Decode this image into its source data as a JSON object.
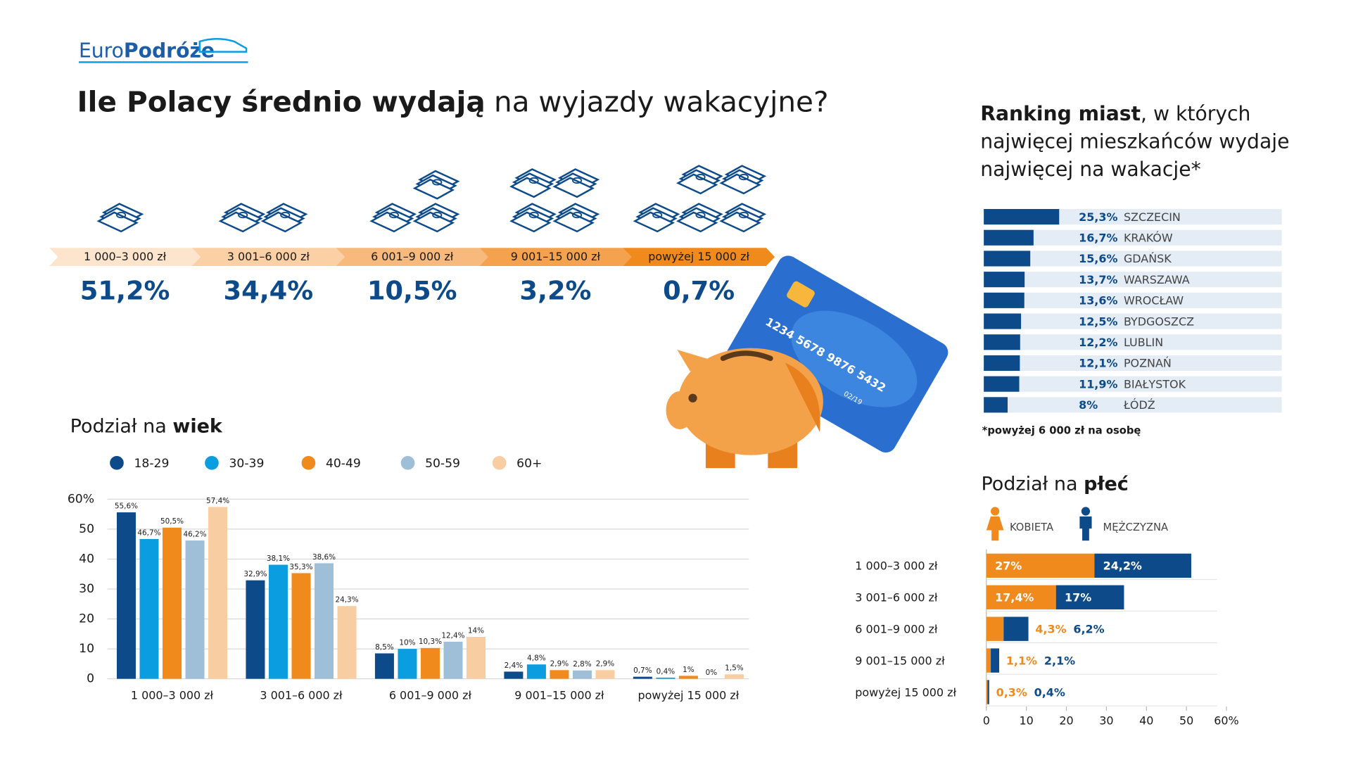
{
  "logo": {
    "light": "Euro",
    "bold": "Podróże"
  },
  "title": {
    "bold": "Ile Polacy średnio wydają",
    "rest": "na wyjazdy wakacyjne?"
  },
  "brackets": [
    {
      "label": "1 000–3 000 zł",
      "share": "51,2%"
    },
    {
      "label": "3 001–6 000 zł",
      "share": "34,4%"
    },
    {
      "label": "6 001–9 000 zł",
      "share": "10,5%"
    },
    {
      "label": "9 001–15 000 zł",
      "share": "3,2%"
    },
    {
      "label": "powyżej 15 000 zł",
      "share": "0,7%"
    }
  ],
  "card": {
    "number": "1234 5678 9876 5432",
    "expiry": "02/19"
  },
  "chart_data": [
    {
      "type": "hbar",
      "title": {
        "bold": "Ranking miast",
        "lines": [
          ", w których",
          "najwięcej mieszkańców wydaje",
          "najwięcej na wakacje*"
        ]
      },
      "categories": [
        "SZCZECIN",
        "KRAKÓW",
        "GDAŃSK",
        "WARSZAWA",
        "WROCŁAW",
        "BYDGOSZCZ",
        "LUBLIN",
        "POZNAŃ",
        "BIAŁYSTOK",
        "ŁÓDŹ"
      ],
      "values": [
        25.3,
        16.7,
        15.6,
        13.7,
        13.6,
        12.5,
        12.2,
        12.1,
        11.9,
        8
      ],
      "value_labels": [
        "25,3%",
        "16,7%",
        "15,6%",
        "13,7%",
        "13,6%",
        "12,5%",
        "12,2%",
        "12,1%",
        "11,9%",
        "8%"
      ],
      "color": "#0d4a8a",
      "xlim": [
        0,
        100
      ],
      "note": "*powyżej 6 000 zł na osobę"
    },
    {
      "type": "bar",
      "title": {
        "light": "Podział na",
        "bold": "wiek"
      },
      "categories": [
        "1 000–3 000 zł",
        "3 001–6 000 zł",
        "6 001–9 000 zł",
        "9 001–15 000 zł",
        "powyżej 15 000 zł"
      ],
      "series": [
        {
          "name": "18-29",
          "color": "#0d4a8a",
          "values": [
            55.6,
            32.9,
            8.5,
            2.4,
            0.7
          ],
          "value_labels": [
            "55,6%",
            "32,9%",
            "8,5%",
            "2,4%",
            "0,7%"
          ]
        },
        {
          "name": "30-39",
          "color": "#0a9ee0",
          "values": [
            46.7,
            38.1,
            10,
            4.8,
            0.4
          ],
          "value_labels": [
            "46,7%",
            "38,1%",
            "10%",
            "4,8%",
            "0,4%"
          ]
        },
        {
          "name": "40-49",
          "color": "#f08a1c",
          "values": [
            50.5,
            35.3,
            10.3,
            2.9,
            1
          ],
          "value_labels": [
            "50,5%",
            "35,3%",
            "10,3%",
            "2,9%",
            "1%"
          ]
        },
        {
          "name": "50-59",
          "color": "#9fbfd8",
          "values": [
            46.2,
            38.6,
            12.4,
            2.8,
            0
          ],
          "value_labels": [
            "46,2%",
            "38,6%",
            "12,4%",
            "2,8%",
            "0%"
          ]
        },
        {
          "name": "60+",
          "color": "#f9cda2",
          "values": [
            57.4,
            24.3,
            14,
            2.9,
            1.5
          ],
          "value_labels": [
            "57,4%",
            "24,3%",
            "14%",
            "2,9%",
            "1,5%"
          ]
        }
      ],
      "ylim": [
        0,
        60
      ],
      "yticks": [
        0,
        10,
        20,
        30,
        40,
        50,
        {
          "value": 60,
          "label": "60%"
        }
      ],
      "grid": true
    },
    {
      "type": "hstack",
      "title": {
        "light": "Podział na",
        "bold": "płeć"
      },
      "categories": [
        "1 000–3 000 zł",
        "3 001–6 000 zł",
        "6 001–9 000 zł",
        "9 001–15 000 zł",
        "powyżej 15 000 zł"
      ],
      "series": [
        {
          "name": "KOBIETA",
          "color": "#f08a1c",
          "values": [
            27,
            17.4,
            4.3,
            1.1,
            0.3
          ],
          "value_labels": [
            "27%",
            "17,4%",
            "4,3%",
            "1,1%",
            "0,3%"
          ]
        },
        {
          "name": "MĘŻCZYZNA",
          "color": "#0d4a8a",
          "values": [
            24.2,
            17,
            6.2,
            2.1,
            0.4
          ],
          "value_labels": [
            "24,2%",
            "17%",
            "6,2%",
            "2,1%",
            "0,4%"
          ]
        }
      ],
      "xlim": [
        0,
        60
      ],
      "xticks": [
        0,
        10,
        20,
        30,
        40,
        50,
        {
          "value": 60,
          "label": "60%"
        }
      ]
    }
  ]
}
